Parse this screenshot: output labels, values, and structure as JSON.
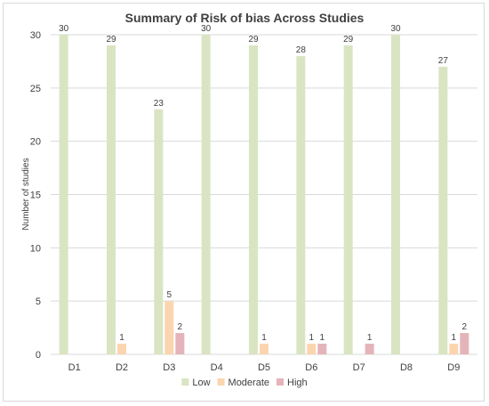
{
  "chart_data": {
    "type": "bar",
    "title": "Summary of Risk of bias Across Studies",
    "xlabel": "",
    "ylabel": "Number of studies",
    "categories": [
      "D1",
      "D2",
      "D3",
      "D4",
      "D5",
      "D6",
      "D7",
      "D8",
      "D9"
    ],
    "series": [
      {
        "name": "Low",
        "color": "#d9e5c2",
        "values": [
          30,
          29,
          23,
          30,
          29,
          28,
          29,
          30,
          27
        ]
      },
      {
        "name": "Moderate",
        "color": "#fbd5b0",
        "values": [
          0,
          1,
          5,
          0,
          1,
          1,
          0,
          0,
          1
        ]
      },
      {
        "name": "High",
        "color": "#e4b4ba",
        "values": [
          0,
          0,
          2,
          0,
          0,
          1,
          1,
          0,
          2
        ]
      }
    ],
    "ylim": [
      0,
      30
    ],
    "yticks": [
      0,
      5,
      10,
      15,
      20,
      25,
      30
    ],
    "grid": true,
    "legend_position": "bottom",
    "show_zero_labels": false
  }
}
